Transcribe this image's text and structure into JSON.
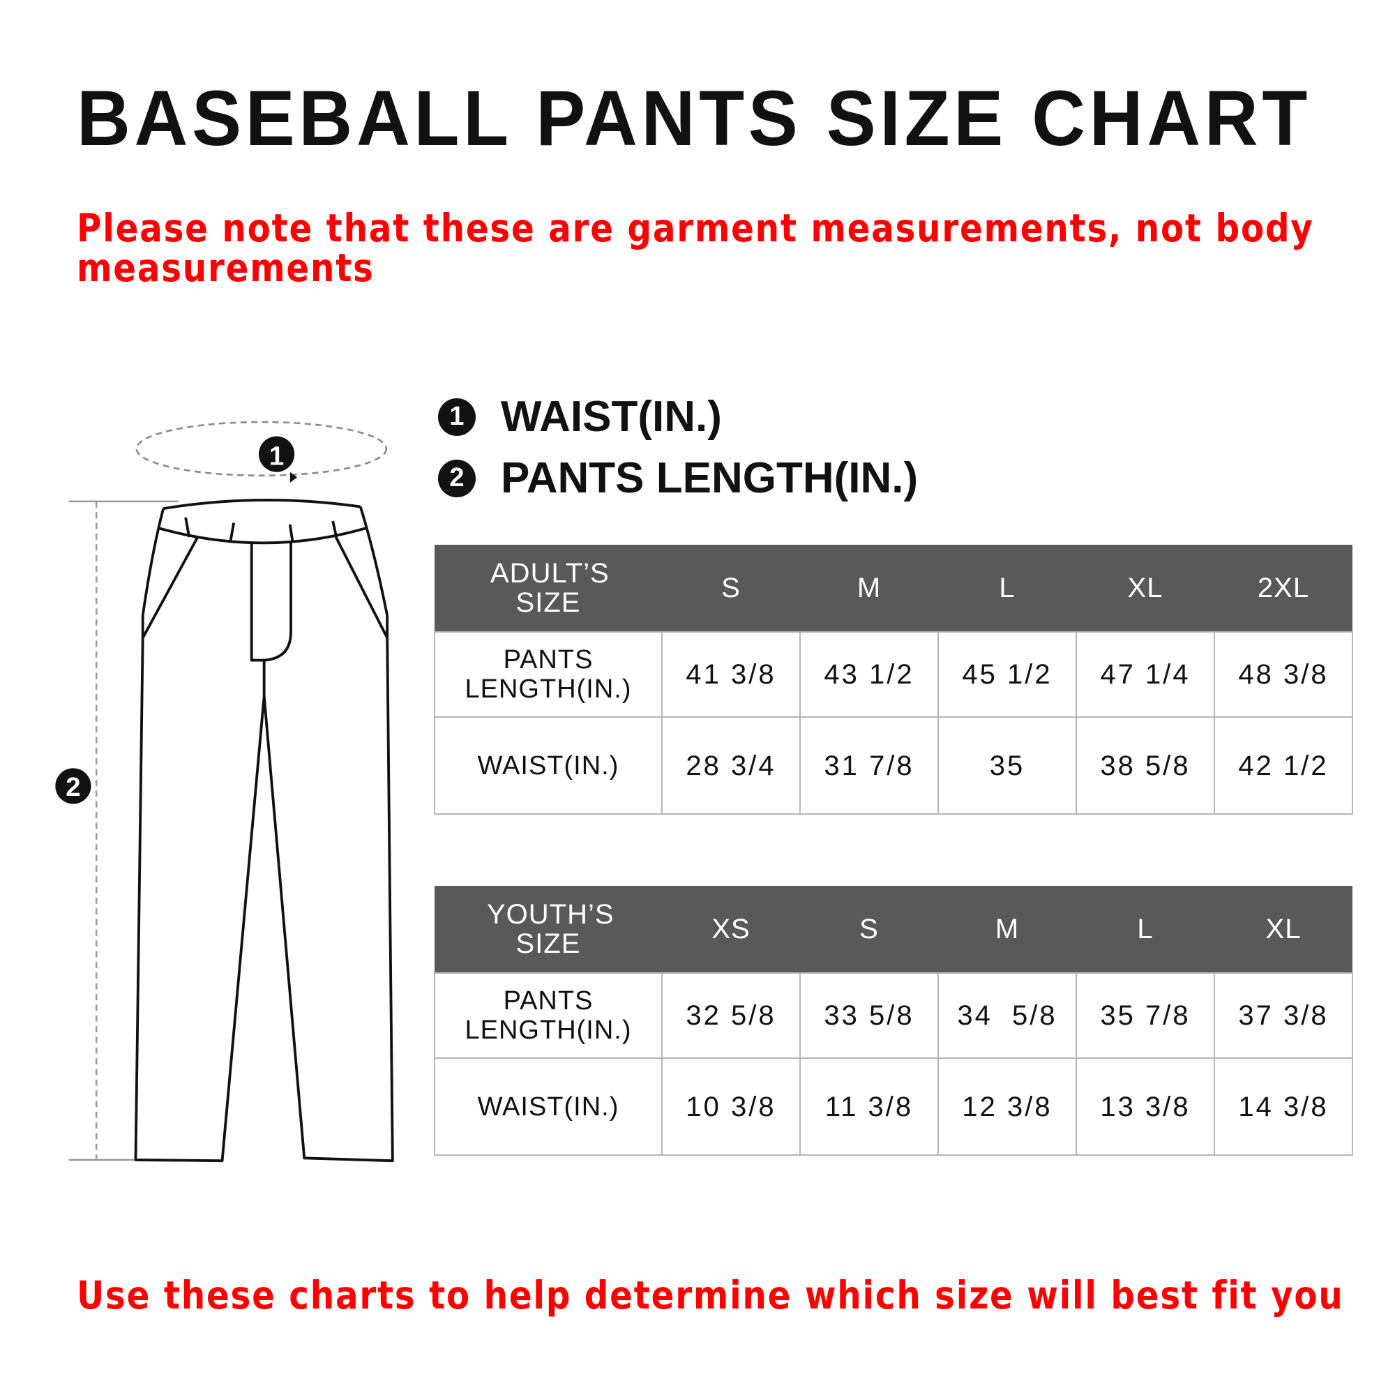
{
  "title": "BASEBALL PANTS SIZE CHART",
  "note": {
    "line1": "Please note that these are garment measurements, not body",
    "line2": "measurements"
  },
  "legend": [
    {
      "num": "1",
      "label": "WAIST(IN.)"
    },
    {
      "num": "2",
      "label": "PANTS LENGTH(IN.)"
    }
  ],
  "adult": {
    "header": [
      "ADULT’S SIZE",
      "S",
      "M",
      "L",
      "XL",
      "2XL"
    ],
    "rows": [
      {
        "label": "PANTS LENGTH(IN.)",
        "values": [
          "41 3/8",
          "43 1/2",
          "45 1/2",
          "47 1/4",
          "48 3/8"
        ]
      },
      {
        "label": "WAIST(IN.)",
        "values": [
          "28 3/4",
          "31 7/8",
          "35",
          "38 5/8",
          "42 1/2"
        ]
      }
    ]
  },
  "youth": {
    "header": [
      "YOUTH’S SIZE",
      "XS",
      "S",
      "M",
      "L",
      "XL"
    ],
    "rows": [
      {
        "label": "PANTS LENGTH(IN.)",
        "values": [
          "32 5/8",
          "33 5/8",
          "34  5/8",
          "35 7/8",
          "37 3/8"
        ]
      },
      {
        "label": "WAIST(IN.)",
        "values": [
          "10 3/8",
          "11 3/8",
          "12 3/8",
          "13 3/8",
          "14 3/8"
        ]
      }
    ]
  },
  "footer": "Use these charts to help determine which size will best fit you",
  "colors": {
    "accent_red": "#ff0000",
    "table_header": "#595959",
    "grid": "#b5b5b5"
  },
  "diagram": {
    "marker_1": "1",
    "marker_2": "2"
  }
}
